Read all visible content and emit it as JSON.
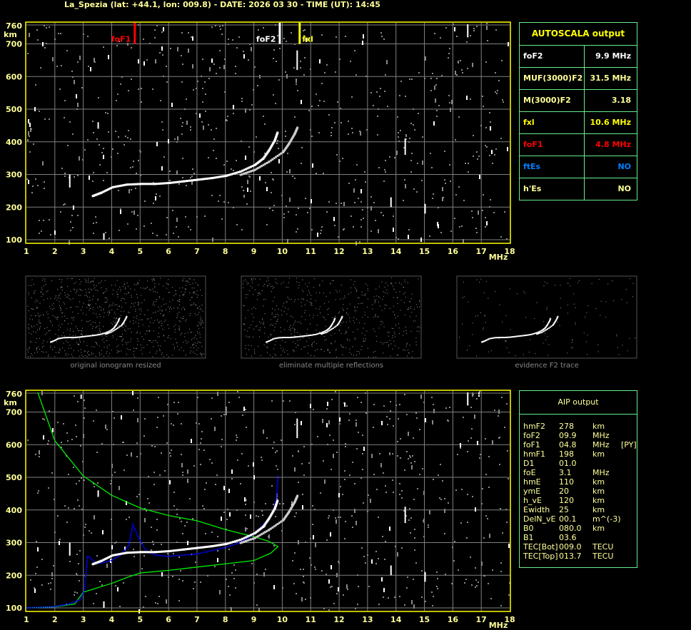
{
  "header": {
    "title": "La_Spezia (lat: +44.1, lon: 009.8) - DATE: 2026 03 30 - TIME (UT): 14:45"
  },
  "colors": {
    "frame": "#ffff00",
    "grid": "#808080",
    "axis_text": "#ffff99",
    "table_border": "#66ee88",
    "foF1": "#ff0000",
    "foF2": "#ffffff",
    "fxl": "#ffff00",
    "ftEs": "#0080ff",
    "profile": "#00ee00",
    "fit": "#0000ff"
  },
  "autoscala": {
    "title": "AUTOSCALA output",
    "rows": [
      {
        "label": "foF2",
        "value": "9.9 MHz",
        "color": "#ffffff"
      },
      {
        "label": "MUF(3000)F2",
        "value": "31.5 MHz",
        "color": "#ffff99"
      },
      {
        "label": "M(3000)F2",
        "value": "3.18",
        "color": "#ffff99"
      },
      {
        "label": "fxl",
        "value": "10.6 MHz",
        "color": "#ffff00"
      },
      {
        "label": "foF1",
        "value": "4.8 MHz",
        "color": "#ff0000"
      },
      {
        "label": "ftEs",
        "value": "NO",
        "color": "#0080ff"
      },
      {
        "label": "h'Es",
        "value": "NO",
        "color": "#ffff99"
      }
    ]
  },
  "aip": {
    "title": "AIP output",
    "rows": [
      [
        "hmF2",
        "278",
        "km",
        ""
      ],
      [
        "foF2",
        "09.9",
        "MHz",
        ""
      ],
      [
        "foF1",
        "04.8",
        "MHz",
        "[PY]"
      ],
      [
        "hmF1",
        "198",
        "km",
        ""
      ],
      [
        "D1",
        "01.0",
        "",
        ""
      ],
      [
        "foE",
        "3.1",
        "MHz",
        ""
      ],
      [
        "hmE",
        "110",
        "km",
        ""
      ],
      [
        "ymE",
        "20",
        "km",
        ""
      ],
      [
        "h_vE",
        "120",
        "km",
        ""
      ],
      [
        "Ewidth",
        "25",
        "km",
        ""
      ],
      [
        "DelN_vE",
        "00.1",
        "m^(-3)",
        ""
      ],
      [
        "B0",
        "080.0",
        "km",
        ""
      ],
      [
        "B1",
        "03.6",
        "",
        ""
      ],
      [
        "TEC[Bot]",
        "009.0",
        "TECU",
        ""
      ],
      [
        "TEC[Top]",
        "013.7",
        "TECU",
        ""
      ]
    ]
  },
  "thumbnails": [
    {
      "caption": "original ionogram resized"
    },
    {
      "caption": "eliminate multiple reflections"
    },
    {
      "caption": "evidence F2 trace"
    }
  ],
  "chart_data": [
    {
      "type": "scatter",
      "title": "",
      "xlabel": "MHz",
      "ylabel": "km",
      "xlim": [
        1,
        18
      ],
      "ylim": [
        100,
        760
      ],
      "xticks": [
        "1",
        "2",
        "3",
        "4",
        "5",
        "6",
        "7",
        "8",
        "9",
        "10",
        "11",
        "12",
        "13",
        "14",
        "15",
        "16",
        "17",
        "18"
      ],
      "yticks": [
        "100",
        "200",
        "300",
        "400",
        "500",
        "600",
        "700",
        "760"
      ],
      "grid": true,
      "markers": [
        {
          "label": "foF1",
          "freq": 4.8,
          "color": "#ff0000"
        },
        {
          "label": "foF2",
          "freq": 9.9,
          "color": "#ffffff"
        },
        {
          "label": "fxl",
          "freq": 10.6,
          "color": "#ffff00"
        }
      ],
      "series": [
        {
          "trace": "o",
          "points": [
            [
              3.3,
              235
            ],
            [
              3.6,
              245
            ],
            [
              4,
              262
            ],
            [
              4.5,
              270
            ],
            [
              5,
              272
            ],
            [
              5.5,
              272
            ],
            [
              6,
              275
            ],
            [
              6.5,
              280
            ],
            [
              7,
              285
            ],
            [
              7.5,
              290
            ],
            [
              8,
              297
            ],
            [
              8.5,
              310
            ],
            [
              9,
              330
            ],
            [
              9.3,
              350
            ],
            [
              9.5,
              375
            ],
            [
              9.7,
              405
            ],
            [
              9.8,
              430
            ]
          ]
        },
        {
          "trace": "x",
          "points": [
            [
              8.5,
              300
            ],
            [
              9,
              315
            ],
            [
              9.5,
              340
            ],
            [
              10,
              370
            ],
            [
              10.2,
              395
            ],
            [
              10.4,
              425
            ],
            [
              10.5,
              445
            ]
          ]
        }
      ]
    },
    {
      "type": "line",
      "title": "",
      "xlabel": "MHz",
      "ylabel": "km",
      "xlim": [
        1,
        18
      ],
      "ylim": [
        100,
        760
      ],
      "xticks": [
        "1",
        "2",
        "3",
        "4",
        "5",
        "6",
        "7",
        "8",
        "9",
        "10",
        "11",
        "12",
        "13",
        "14",
        "15",
        "16",
        "17",
        "18"
      ],
      "yticks": [
        "100",
        "200",
        "300",
        "400",
        "500",
        "600",
        "700",
        "760"
      ],
      "grid": true,
      "series": [
        {
          "curve": "profile",
          "color": "#00ee00",
          "points": [
            [
              1,
              100
            ],
            [
              2,
              103
            ],
            [
              2.7,
              112
            ],
            [
              3,
              148
            ],
            [
              4,
              175
            ],
            [
              4.6,
              195
            ],
            [
              5,
              207
            ],
            [
              6,
              215
            ],
            [
              7,
              225
            ],
            [
              8,
              235
            ],
            [
              9,
              245
            ],
            [
              9.6,
              268
            ],
            [
              9.85,
              288
            ],
            [
              9.5,
              305
            ],
            [
              9,
              318
            ],
            [
              8,
              340
            ],
            [
              7,
              367
            ],
            [
              6,
              383
            ],
            [
              5,
              406
            ],
            [
              4,
              445
            ],
            [
              3,
              504
            ],
            [
              2,
              612
            ],
            [
              1.4,
              760
            ]
          ]
        },
        {
          "curve": "fit",
          "color": "#0000ff",
          "points": [
            [
              1,
              100
            ],
            [
              2,
              104
            ],
            [
              2.5,
              112
            ],
            [
              2.9,
              125
            ],
            [
              3.05,
              155
            ],
            [
              3.15,
              260
            ],
            [
              3.5,
              235
            ],
            [
              4,
              245
            ],
            [
              4.3,
              262
            ],
            [
              4.6,
              290
            ],
            [
              4.75,
              355
            ],
            [
              4.95,
              315
            ],
            [
              5.2,
              275
            ],
            [
              5.5,
              262
            ],
            [
              6,
              258
            ],
            [
              7,
              265
            ],
            [
              8,
              285
            ],
            [
              8.5,
              300
            ],
            [
              9,
              325
            ],
            [
              9.5,
              370
            ],
            [
              9.7,
              400
            ],
            [
              9.8,
              440
            ],
            [
              9.85,
              505
            ]
          ]
        },
        {
          "trace": "o",
          "points": [
            [
              3.3,
              235
            ],
            [
              3.6,
              245
            ],
            [
              4,
              262
            ],
            [
              4.5,
              270
            ],
            [
              5,
              272
            ],
            [
              5.5,
              272
            ],
            [
              6,
              275
            ],
            [
              6.5,
              280
            ],
            [
              7,
              285
            ],
            [
              7.5,
              290
            ],
            [
              8,
              297
            ],
            [
              8.5,
              310
            ],
            [
              9,
              330
            ],
            [
              9.3,
              350
            ],
            [
              9.5,
              375
            ],
            [
              9.7,
              405
            ],
            [
              9.8,
              430
            ]
          ]
        },
        {
          "trace": "x",
          "points": [
            [
              8.5,
              300
            ],
            [
              9,
              315
            ],
            [
              9.5,
              340
            ],
            [
              10,
              370
            ],
            [
              10.2,
              395
            ],
            [
              10.4,
              425
            ],
            [
              10.5,
              445
            ]
          ]
        }
      ]
    }
  ]
}
